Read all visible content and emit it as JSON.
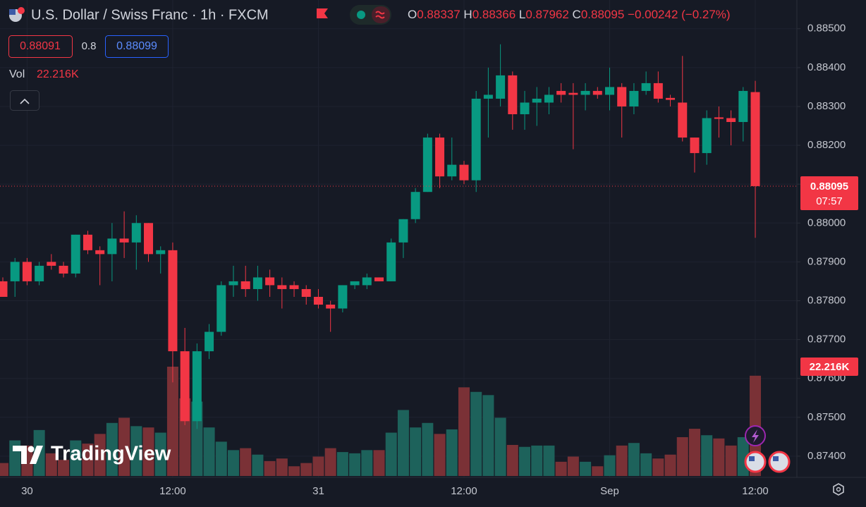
{
  "chart_data": {
    "type": "candlestick",
    "title": "U.S. Dollar / Swiss Franc · 1h · FXCM",
    "categories": [
      null,
      null,
      "30",
      null,
      null,
      null,
      null,
      null,
      null,
      null,
      null,
      null,
      null,
      null,
      "12:00",
      null,
      null,
      null,
      null,
      null,
      null,
      null,
      null,
      null,
      null,
      null,
      "31",
      null,
      null,
      null,
      null,
      null,
      null,
      null,
      null,
      null,
      null,
      null,
      "12:00",
      null,
      null,
      null,
      null,
      null,
      null,
      null,
      null,
      null,
      null,
      null,
      "Sep",
      null,
      null,
      null,
      null,
      null,
      null,
      null,
      null,
      null,
      null,
      null,
      "12:00"
    ],
    "open": [
      0.8785,
      0.8785,
      0.879,
      0.8785,
      0.879,
      0.8789,
      0.8787,
      0.8797,
      0.8793,
      0.8792,
      0.8796,
      0.8795,
      0.88,
      0.8792,
      0.8793,
      0.8767,
      0.8749,
      0.8767,
      0.8772,
      0.8784,
      0.8785,
      0.8783,
      0.8786,
      0.8784,
      0.8784,
      0.8783,
      0.8781,
      0.8779,
      0.8778,
      0.8784,
      0.8784,
      0.8786,
      0.8785,
      0.8795,
      0.8801,
      0.8808,
      0.8822,
      0.8812,
      0.8815,
      0.8811,
      0.8832,
      0.8832,
      0.8838,
      0.8828,
      0.8831,
      0.8831,
      0.8834,
      0.88335,
      0.8833,
      0.8834,
      0.8833,
      0.8835,
      0.883,
      0.8834,
      0.8836,
      0.88322,
      0.8831,
      0.8822,
      0.8818,
      0.88272,
      0.8827,
      0.8826,
      0.88337
    ],
    "high": [
      0.8786,
      0.8791,
      0.8791,
      0.879,
      0.8792,
      0.879,
      0.8797,
      0.8798,
      0.8794,
      0.88,
      0.8803,
      0.8802,
      0.88,
      0.8794,
      0.8795,
      0.8773,
      0.8769,
      0.8774,
      0.8785,
      0.8789,
      0.8789,
      0.8789,
      0.8788,
      0.8786,
      0.8785,
      0.8784,
      0.8783,
      0.878,
      0.8784,
      0.8785,
      0.8787,
      0.8786,
      0.8796,
      0.8801,
      0.8809,
      0.8823,
      0.8823,
      0.8822,
      0.8816,
      0.8834,
      0.884,
      0.8846,
      0.8839,
      0.8834,
      0.8835,
      0.8835,
      0.8836,
      0.8836,
      0.8836,
      0.8835,
      0.884,
      0.8836,
      0.8836,
      0.8839,
      0.8839,
      0.8833,
      0.8843,
      0.8822,
      0.8829,
      0.883,
      0.8829,
      0.8835,
      0.88366
    ],
    "low": [
      0.8781,
      0.8781,
      0.8784,
      0.8784,
      0.8788,
      0.8786,
      0.8786,
      0.8792,
      0.8784,
      0.8785,
      0.8791,
      0.8788,
      0.879,
      0.8787,
      0.8759,
      0.8748,
      0.8747,
      0.8765,
      0.8771,
      0.8781,
      0.8781,
      0.878,
      0.8781,
      0.8778,
      0.8781,
      0.8779,
      0.8778,
      0.8772,
      0.8777,
      0.8783,
      0.8783,
      0.8785,
      0.8785,
      0.8791,
      0.88,
      0.8808,
      0.8809,
      0.8811,
      0.881,
      0.8808,
      0.8822,
      0.883,
      0.8824,
      0.8824,
      0.8825,
      0.8828,
      0.8831,
      0.8819,
      0.8829,
      0.8832,
      0.8829,
      0.8822,
      0.8828,
      0.8833,
      0.8831,
      0.883,
      0.8821,
      0.8813,
      0.8815,
      0.8822,
      0.882,
      0.8821,
      0.87962
    ],
    "close": [
      0.8781,
      0.879,
      0.8785,
      0.8789,
      0.8789,
      0.8787,
      0.8797,
      0.8793,
      0.8792,
      0.8796,
      0.8795,
      0.88,
      0.8792,
      0.8793,
      0.8767,
      0.8749,
      0.8767,
      0.8772,
      0.8784,
      0.8785,
      0.8783,
      0.8786,
      0.8784,
      0.8783,
      0.8783,
      0.8781,
      0.8779,
      0.8778,
      0.8784,
      0.8785,
      0.8786,
      0.8785,
      0.8795,
      0.8801,
      0.8808,
      0.8822,
      0.8812,
      0.8815,
      0.8811,
      0.8832,
      0.8833,
      0.8838,
      0.8828,
      0.8831,
      0.8832,
      0.8833,
      0.8833,
      0.8833,
      0.8834,
      0.8833,
      0.8835,
      0.883,
      0.8834,
      0.8836,
      0.8832,
      0.88317,
      0.8822,
      0.8818,
      0.8827,
      0.88268,
      0.8826,
      0.8834,
      0.88095
    ],
    "volume": {
      "name": "Vol",
      "values": [
        2.87,
        7.88,
        6.74,
        10.18,
        5.02,
        3.58,
        7.88,
        7.17,
        9.32,
        11.75,
        12.9,
        11.04,
        10.75,
        9.6,
        24.22,
        17.2,
        16.48,
        10.75,
        7.6,
        5.73,
        6.16,
        4.73,
        3.3,
        3.87,
        2.15,
        2.87,
        4.3,
        6.16,
        5.3,
        5.02,
        5.73,
        5.73,
        9.6,
        14.62,
        10.75,
        11.75,
        9.32,
        10.32,
        19.64,
        18.63,
        17.92,
        12.9,
        6.88,
        6.45,
        6.74,
        6.74,
        3.15,
        4.3,
        3.15,
        2.15,
        4.59,
        6.74,
        7.31,
        5.02,
        3.87,
        4.73,
        8.6,
        10.46,
        9.03,
        8.31,
        6.74,
        8.6,
        22.216
      ],
      "last_label": "22.216K"
    },
    "countdown": "07:57",
    "ylim": [
      0.87349,
      0.88574
    ],
    "yticks": [
      {
        "value": 0.885,
        "label": "0.88500"
      },
      {
        "value": 0.884,
        "label": "0.88400"
      },
      {
        "value": 0.883,
        "label": "0.88300"
      },
      {
        "value": 0.882,
        "label": "0.88200"
      },
      {
        "value": 0.881,
        "label": "0.88100"
      },
      {
        "value": 0.88,
        "label": "0.88000"
      },
      {
        "value": 0.879,
        "label": "0.87900"
      },
      {
        "value": 0.878,
        "label": "0.87800"
      },
      {
        "value": 0.877,
        "label": "0.87700"
      },
      {
        "value": 0.876,
        "label": "0.87600"
      },
      {
        "value": 0.875,
        "label": "0.87500"
      },
      {
        "value": 0.874,
        "label": "0.87400"
      }
    ],
    "grid": true,
    "colors": {
      "up": "#089981",
      "down": "#f23645",
      "volume_up": "#1d625b",
      "volume_down": "#7a3136"
    }
  },
  "header": {
    "ohlc_letters": [
      "O",
      "H",
      "L",
      "C"
    ],
    "change": "−0.00242 (−0.27%)",
    "bid": "0.88091",
    "spread": "0.8",
    "ask": "0.88099",
    "logo": "TradingView"
  }
}
